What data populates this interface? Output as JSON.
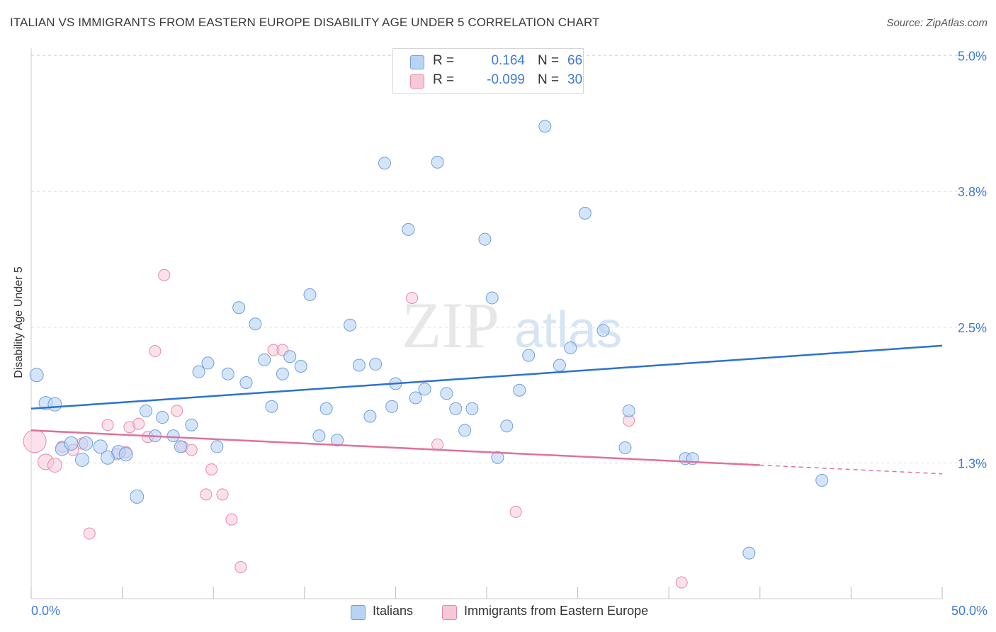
{
  "header": {
    "title": "ITALIAN VS IMMIGRANTS FROM EASTERN EUROPE DISABILITY AGE UNDER 5 CORRELATION CHART",
    "source": "Source: ZipAtlas.com"
  },
  "legend": {
    "rows": [
      {
        "r_label": "R =",
        "r_value": "0.164",
        "n_label": "N =",
        "n_value": "66"
      },
      {
        "r_label": "R =",
        "r_value": "-0.099",
        "n_label": "N =",
        "n_value": "30"
      }
    ]
  },
  "watermark": {
    "zip": "ZIP",
    "atlas": "atlas"
  },
  "chart_data": {
    "type": "scatter",
    "title": "ITALIAN VS IMMIGRANTS FROM EASTERN EUROPE DISABILITY AGE UNDER 5 CORRELATION CHART",
    "xlabel": "",
    "ylabel": "Disability Age Under 5",
    "xlim": [
      0,
      50
    ],
    "ylim": [
      0,
      5.2
    ],
    "x_tick_labels": [
      "0.0%",
      "50.0%"
    ],
    "y_ticks": [
      1.25,
      2.5,
      3.75,
      5.0
    ],
    "y_tick_labels": [
      "1.3%",
      "2.5%",
      "3.8%",
      "5.0%"
    ],
    "legend_position": "top-center",
    "colors": {
      "italians_fill": "#b8d3f5",
      "italians_stroke": "#6f9fdc",
      "italians_line": "#2b72d1",
      "immigrants_fill": "#f7c8d7",
      "immigrants_stroke": "#e68aa8",
      "immigrants_line": "#e0719b",
      "axis_text": "#3d7bd8",
      "grid": "#dddddd"
    },
    "series": [
      {
        "name": "Italians",
        "r": 0.164,
        "n": 66,
        "trend": {
          "x0": 0,
          "y0": 1.75,
          "x1": 50,
          "y1": 2.33
        },
        "points": [
          [
            0.3,
            2.06
          ],
          [
            0.8,
            1.8
          ],
          [
            1.3,
            1.79
          ],
          [
            1.7,
            1.38
          ],
          [
            2.2,
            1.43
          ],
          [
            2.8,
            1.28
          ],
          [
            3.8,
            1.4
          ],
          [
            4.2,
            1.3
          ],
          [
            4.8,
            1.35
          ],
          [
            5.2,
            1.33
          ],
          [
            5.8,
            0.94
          ],
          [
            6.3,
            1.73
          ],
          [
            6.8,
            1.5
          ],
          [
            7.2,
            1.67
          ],
          [
            7.8,
            1.5
          ],
          [
            8.2,
            1.4
          ],
          [
            8.8,
            1.6
          ],
          [
            9.2,
            2.09
          ],
          [
            9.7,
            2.17
          ],
          [
            10.2,
            1.4
          ],
          [
            10.8,
            2.07
          ],
          [
            11.4,
            2.68
          ],
          [
            11.8,
            1.99
          ],
          [
            12.3,
            2.53
          ],
          [
            12.8,
            2.2
          ],
          [
            13.2,
            1.77
          ],
          [
            13.8,
            2.07
          ],
          [
            14.2,
            2.23
          ],
          [
            14.8,
            2.14
          ],
          [
            15.3,
            2.8
          ],
          [
            15.8,
            1.5
          ],
          [
            16.2,
            1.75
          ],
          [
            16.8,
            1.46
          ],
          [
            17.5,
            2.52
          ],
          [
            18.0,
            2.15
          ],
          [
            18.6,
            1.68
          ],
          [
            18.9,
            2.16
          ],
          [
            19.4,
            4.01
          ],
          [
            19.8,
            1.77
          ],
          [
            20.0,
            1.98
          ],
          [
            20.7,
            3.4
          ],
          [
            21.1,
            1.85
          ],
          [
            21.6,
            1.93
          ],
          [
            22.3,
            4.02
          ],
          [
            22.8,
            1.89
          ],
          [
            23.3,
            1.75
          ],
          [
            23.8,
            1.55
          ],
          [
            24.2,
            1.75
          ],
          [
            24.9,
            3.31
          ],
          [
            25.3,
            2.77
          ],
          [
            25.6,
            1.3
          ],
          [
            26.1,
            1.59
          ],
          [
            26.8,
            1.92
          ],
          [
            27.3,
            2.24
          ],
          [
            28.2,
            4.35
          ],
          [
            29.0,
            2.15
          ],
          [
            29.6,
            2.31
          ],
          [
            30.4,
            3.55
          ],
          [
            31.4,
            2.47
          ],
          [
            32.6,
            1.39
          ],
          [
            32.8,
            1.73
          ],
          [
            35.9,
            1.29
          ],
          [
            36.3,
            1.29
          ],
          [
            43.4,
            1.09
          ],
          [
            39.4,
            0.42
          ],
          [
            3.0,
            1.43
          ]
        ]
      },
      {
        "name": "Immigrants from Eastern Europe",
        "r": -0.099,
        "n": 30,
        "trend": {
          "x0": 0,
          "y0": 1.55,
          "x1": 40,
          "y1": 1.23,
          "dash_x1": 50,
          "dash_y1": 1.15
        },
        "points": [
          [
            0.2,
            1.45
          ],
          [
            0.8,
            1.26
          ],
          [
            1.3,
            1.23
          ],
          [
            1.7,
            1.4
          ],
          [
            2.3,
            1.37
          ],
          [
            2.8,
            1.43
          ],
          [
            3.2,
            0.6
          ],
          [
            4.2,
            1.6
          ],
          [
            4.7,
            1.33
          ],
          [
            5.2,
            1.35
          ],
          [
            5.4,
            1.58
          ],
          [
            5.9,
            1.61
          ],
          [
            6.4,
            1.49
          ],
          [
            6.8,
            2.28
          ],
          [
            7.3,
            2.98
          ],
          [
            8.0,
            1.73
          ],
          [
            8.3,
            1.4
          ],
          [
            8.8,
            1.37
          ],
          [
            9.6,
            0.96
          ],
          [
            9.9,
            1.19
          ],
          [
            10.5,
            0.96
          ],
          [
            11.0,
            0.73
          ],
          [
            11.5,
            0.29
          ],
          [
            13.3,
            2.29
          ],
          [
            13.8,
            2.29
          ],
          [
            20.9,
            2.77
          ],
          [
            22.3,
            1.42
          ],
          [
            26.6,
            0.8
          ],
          [
            32.8,
            1.64
          ],
          [
            35.7,
            0.15
          ]
        ]
      }
    ]
  },
  "bottom_legend": {
    "items": [
      {
        "label": "Italians"
      },
      {
        "label": "Immigrants from Eastern Europe"
      }
    ]
  }
}
